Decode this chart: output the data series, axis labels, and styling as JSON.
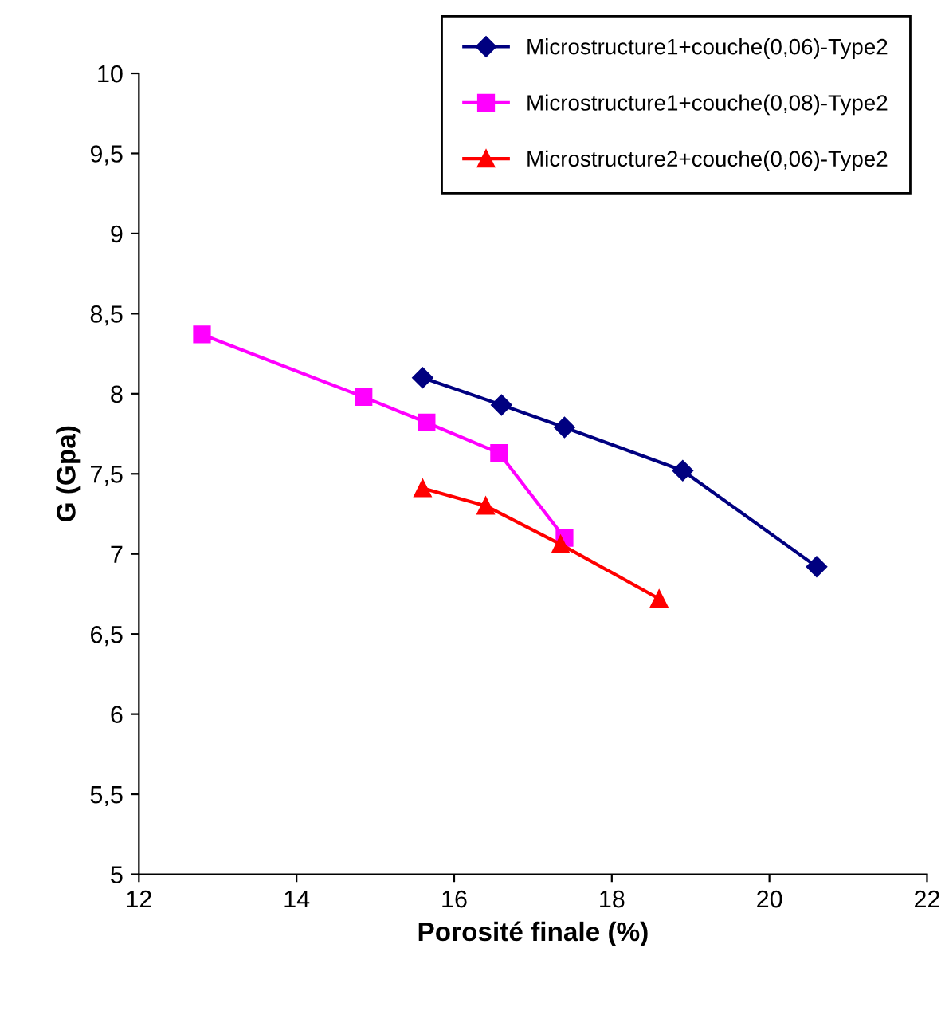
{
  "chart_data": {
    "type": "line",
    "xlabel": "Porosité finale (%)",
    "ylabel": "G (Gpa)",
    "xlim": [
      12,
      22
    ],
    "xticks": [
      12,
      14,
      16,
      18,
      20,
      22
    ],
    "ylim": [
      5,
      10
    ],
    "yticks": [
      5,
      {
        "value": 5.5,
        "label": "5,5"
      },
      6,
      {
        "value": 6.5,
        "label": "6,5"
      },
      7,
      {
        "value": 7.5,
        "label": "7,5"
      },
      8,
      {
        "value": 8.5,
        "label": "8,5"
      },
      9,
      {
        "value": 9.5,
        "label": "9,5"
      },
      10
    ],
    "grid": false,
    "legend": "top right",
    "line_style": "solid",
    "series": [
      {
        "name": "Microstructure1+couche(0,06)-Type2",
        "color": "#000080",
        "marker": "diamond",
        "x": [
          15.6,
          16.6,
          17.4,
          18.9,
          20.6
        ],
        "values": [
          8.1,
          7.93,
          7.79,
          7.52,
          6.92
        ]
      },
      {
        "name": "Microstructure1+couche(0,08)-Type2",
        "color": "#ff00ff",
        "marker": "square",
        "x": [
          12.8,
          14.85,
          15.65,
          16.57,
          17.4
        ],
        "values": [
          8.37,
          7.98,
          7.82,
          7.63,
          7.1
        ]
      },
      {
        "name": "Microstructure2+couche(0,06)-Type2",
        "color": "#ff0000",
        "marker": "triangle",
        "x": [
          15.6,
          16.4,
          17.35,
          18.6
        ],
        "values": [
          7.41,
          7.3,
          7.06,
          6.72
        ]
      }
    ]
  }
}
